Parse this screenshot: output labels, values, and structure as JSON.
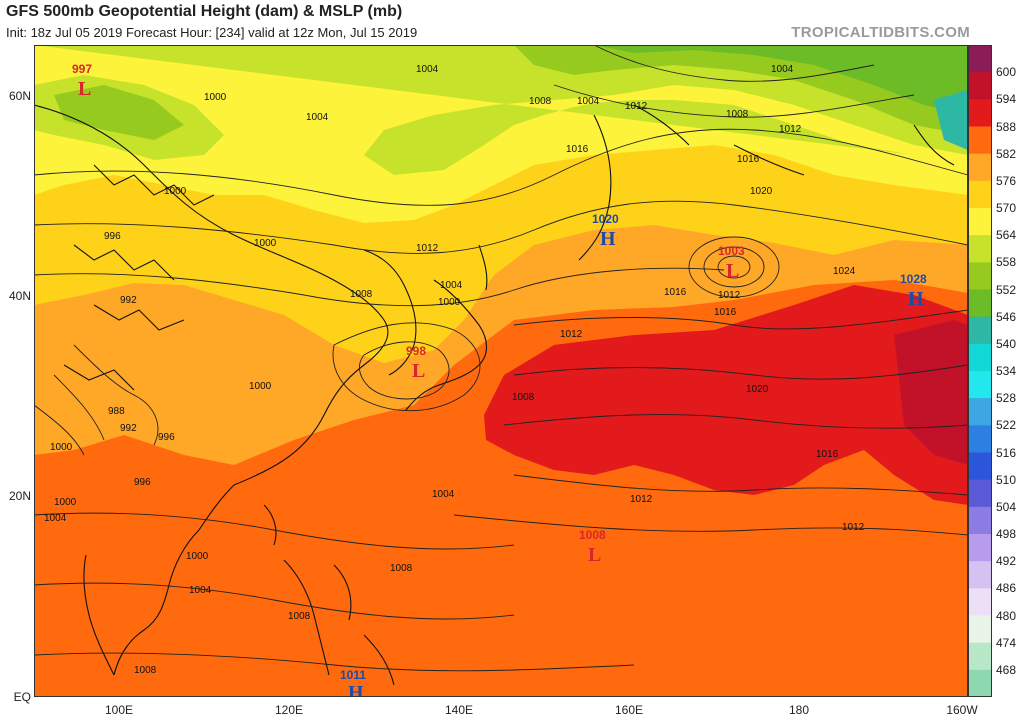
{
  "header": {
    "title": "GFS 500mb Geopotential Height (dam) & MSLP (mb)",
    "subtitle": "Init: 18z Jul 05 2019   Forecast Hour: [234]   valid at 12z Mon, Jul 15 2019",
    "brand": "TROPICALTIDBITS.COM"
  },
  "axes": {
    "lat_labels": [
      "60N",
      "40N",
      "20N",
      "EQ"
    ],
    "lon_labels": [
      "100E",
      "120E",
      "140E",
      "160E",
      "180",
      "160W"
    ]
  },
  "colorbar": {
    "labels": [
      "600",
      "594",
      "588",
      "582",
      "576",
      "570",
      "564",
      "558",
      "552",
      "546",
      "540",
      "534",
      "528",
      "522",
      "516",
      "510",
      "504",
      "498",
      "492",
      "486",
      "480",
      "474",
      "468"
    ],
    "colors": [
      "#8c1c55",
      "#c2122a",
      "#e31a1c",
      "#ff6a0e",
      "#ffa726",
      "#ffd21a",
      "#fcf33a",
      "#c7e22a",
      "#96ca1e",
      "#6cbc28",
      "#2db8a5",
      "#12d8d8",
      "#22e8ee",
      "#3ea6e3",
      "#2d7fe2",
      "#2b56d9",
      "#5a5ad8",
      "#8c7be3",
      "#b79ced",
      "#d6c2f2",
      "#ebe0f5",
      "#eaf5ea",
      "#b8e8c8",
      "#8ed8b0"
    ]
  },
  "pressure_centers": [
    {
      "type": "L",
      "value": "997",
      "color": "#d9262a"
    },
    {
      "type": "H",
      "value": "1020",
      "color": "#1f4aa8"
    },
    {
      "type": "L",
      "value": "1003",
      "color": "#d9262a"
    },
    {
      "type": "H",
      "value": "1028",
      "color": "#1f4aa8"
    },
    {
      "type": "L",
      "value": "998",
      "color": "#d9262a"
    },
    {
      "type": "L",
      "value": "1008",
      "color": "#d9262a"
    },
    {
      "type": "H",
      "value": "1011",
      "color": "#1f4aa8"
    }
  ],
  "isobar_labels": [
    "1004",
    "1000",
    "1004",
    "1008",
    "1004",
    "1012",
    "1008",
    "1004",
    "1016",
    "1012",
    "1016",
    "1020",
    "1000",
    "996",
    "1000",
    "1012",
    "1008",
    "1004",
    "1000",
    "992",
    "1016",
    "1012",
    "1016",
    "1024",
    "1012",
    "1000",
    "988",
    "992",
    "996",
    "1000",
    "1008",
    "1020",
    "1000",
    "1016",
    "996",
    "1004",
    "1012",
    "1004",
    "1000",
    "1012",
    "1008",
    "1004",
    "1008",
    "1008"
  ],
  "legend_colors": {
    "land_outline": "#111111",
    "isobar": "#222222"
  }
}
